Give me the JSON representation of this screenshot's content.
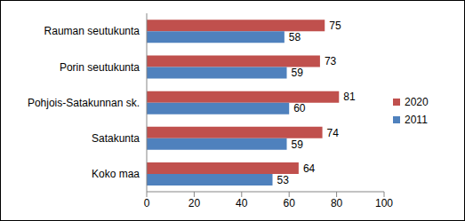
{
  "chart_data": {
    "type": "bar",
    "orientation": "horizontal",
    "categories": [
      "Rauman seutukunta",
      "Porin seutukunta",
      "Pohjois-Satakunnan sk.",
      "Satakunta",
      "Koko maa"
    ],
    "series": [
      {
        "name": "2020",
        "color": "#C0504D",
        "values": [
          75,
          73,
          81,
          74,
          64
        ]
      },
      {
        "name": "2011",
        "color": "#4F81BD",
        "values": [
          58,
          59,
          60,
          59,
          53
        ]
      }
    ],
    "xlim": [
      0,
      100
    ],
    "xticks": [
      0,
      20,
      40,
      60,
      80,
      100
    ],
    "legend": "right",
    "data_labels": true,
    "grid": false
  }
}
